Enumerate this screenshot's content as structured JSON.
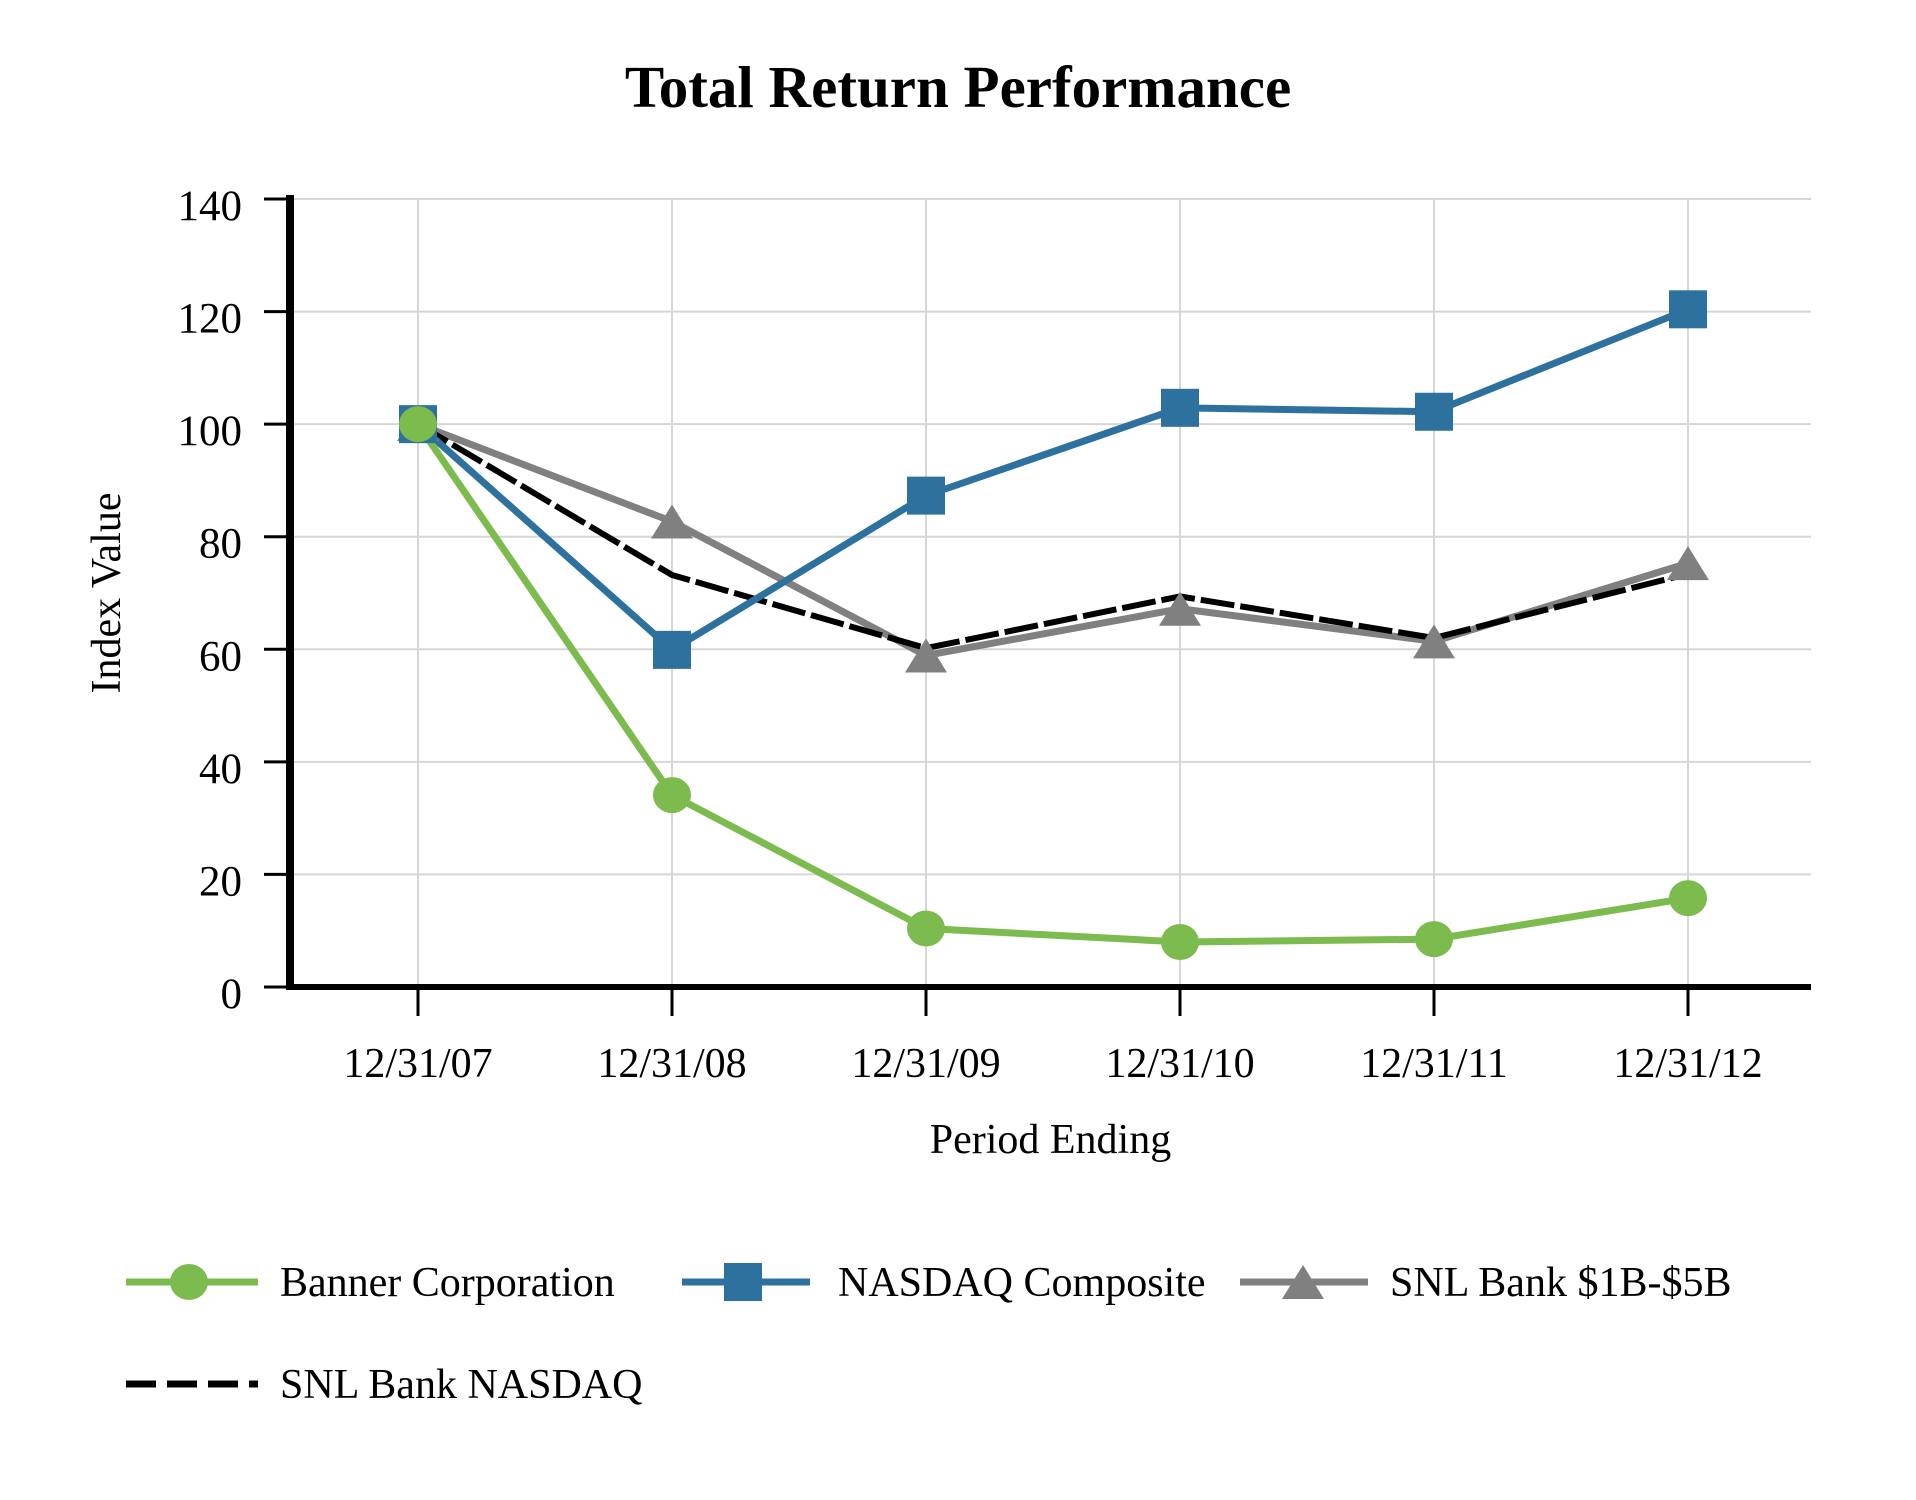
{
  "title": "Total Return Performance",
  "chart_data": {
    "type": "line",
    "title": "Total Return Performance",
    "xlabel": "Period Ending",
    "ylabel": "Index Value",
    "ylim": [
      0,
      140
    ],
    "ytick_step": 20,
    "grid": true,
    "legend_position": "bottom-left",
    "categories": [
      "12/31/07",
      "12/31/08",
      "12/31/09",
      "12/31/10",
      "12/31/11",
      "12/31/12"
    ],
    "series": [
      {
        "name": "Banner Corporation",
        "marker": "circle",
        "color": "#7CBB4D",
        "values": [
          100.0,
          34.1,
          10.4,
          8.0,
          8.5,
          15.8
        ]
      },
      {
        "name": "NASDAQ Composite",
        "marker": "square",
        "color": "#2D719E",
        "values": [
          100.0,
          59.9,
          87.3,
          102.9,
          102.2,
          120.4
        ]
      },
      {
        "name": "SNL Bank $1B-$5B",
        "marker": "triangle",
        "color": "#808080",
        "values": [
          100.0,
          82.7,
          58.9,
          67.2,
          61.4,
          75.3
        ]
      },
      {
        "name": "SNL Bank NASDAQ",
        "marker": "none",
        "color": "#000000",
        "dashed": true,
        "values": [
          100.0,
          73.2,
          60.2,
          69.4,
          62.0,
          73.4
        ]
      }
    ]
  },
  "colors": {
    "background": "#ffffff",
    "axis": "#000000",
    "gridline": "#D6D6D6",
    "banner_green": "#7CBB4D",
    "nasdaq_blue": "#2D719E",
    "snl_gray": "#808080",
    "snl_nasdaq_black": "#000000"
  }
}
